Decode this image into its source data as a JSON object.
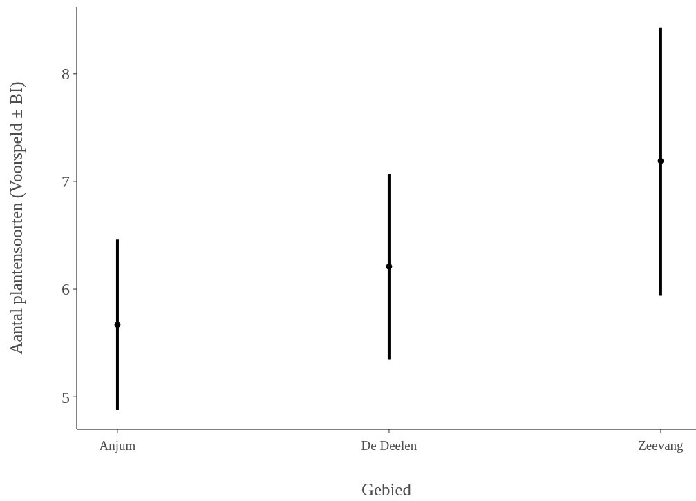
{
  "chart_data": {
    "type": "scatter",
    "xlabel": "Gebied",
    "ylabel": "Aantal plantensoorten (Voorspeld ± BI)",
    "categories": [
      "Anjum",
      "De Deelen",
      "Zeevang"
    ],
    "values": [
      5.67,
      6.21,
      7.19
    ],
    "errors": [
      [
        4.88,
        6.46
      ],
      [
        5.35,
        7.07
      ],
      [
        5.94,
        8.43
      ]
    ],
    "color": "#000000",
    "marker": "circle",
    "grid": false,
    "ylim": [
      4.7,
      8.62
    ],
    "yticks": [
      5,
      6,
      7,
      8
    ]
  }
}
